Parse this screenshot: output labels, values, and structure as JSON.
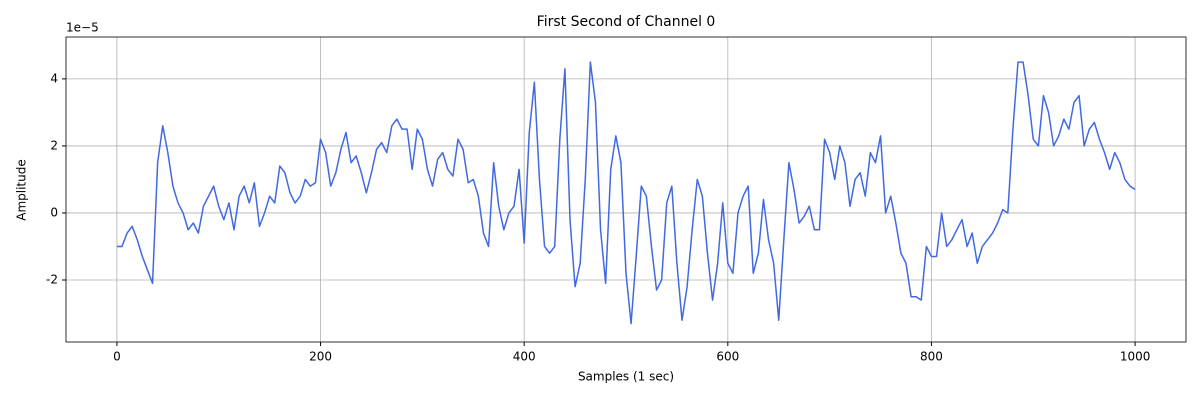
{
  "chart_data": {
    "type": "line",
    "title": "First Second of Channel 0",
    "xlabel": "Samples (1 sec)",
    "ylabel": "Amplitude",
    "offset_label": "1e−5",
    "x": [
      0,
      5,
      10,
      15,
      20,
      25,
      30,
      35,
      40,
      45,
      50,
      55,
      60,
      65,
      70,
      75,
      80,
      85,
      90,
      95,
      100,
      105,
      110,
      115,
      120,
      125,
      130,
      135,
      140,
      145,
      150,
      155,
      160,
      165,
      170,
      175,
      180,
      185,
      190,
      195,
      200,
      205,
      210,
      215,
      220,
      225,
      230,
      235,
      240,
      245,
      250,
      255,
      260,
      265,
      270,
      275,
      280,
      285,
      290,
      295,
      300,
      305,
      310,
      315,
      320,
      325,
      330,
      335,
      340,
      345,
      350,
      355,
      360,
      365,
      370,
      375,
      380,
      385,
      390,
      395,
      400,
      405,
      410,
      415,
      420,
      425,
      430,
      435,
      440,
      445,
      450,
      455,
      460,
      465,
      470,
      475,
      480,
      485,
      490,
      495,
      500,
      505,
      510,
      515,
      520,
      525,
      530,
      535,
      540,
      545,
      550,
      555,
      560,
      565,
      570,
      575,
      580,
      585,
      590,
      595,
      600,
      605,
      610,
      615,
      620,
      625,
      630,
      635,
      640,
      645,
      650,
      655,
      660,
      665,
      670,
      675,
      680,
      685,
      690,
      695,
      700,
      705,
      710,
      715,
      720,
      725,
      730,
      735,
      740,
      745,
      750,
      755,
      760,
      765,
      770,
      775,
      780,
      785,
      790,
      795,
      800,
      805,
      810,
      815,
      820,
      825,
      830,
      835,
      840,
      845,
      850,
      855,
      860,
      865,
      870,
      875,
      880,
      885,
      890,
      895,
      900,
      905,
      910,
      915,
      920,
      925,
      930,
      935,
      940,
      945,
      950,
      955,
      960,
      965,
      970,
      975,
      980,
      985,
      990,
      995,
      1000
    ],
    "series": [
      {
        "name": "Channel 0",
        "color": "#4169e1",
        "values": [
          -1.0,
          -1.0,
          -0.6,
          -0.4,
          -0.8,
          -1.3,
          -1.7,
          -2.1,
          1.5,
          2.6,
          1.8,
          0.8,
          0.3,
          0.0,
          -0.5,
          -0.3,
          -0.6,
          0.2,
          0.5,
          0.8,
          0.2,
          -0.2,
          0.3,
          -0.5,
          0.5,
          0.8,
          0.3,
          0.9,
          -0.4,
          0.0,
          0.5,
          0.3,
          1.4,
          1.2,
          0.6,
          0.3,
          0.5,
          1.0,
          0.8,
          0.9,
          2.2,
          1.8,
          0.8,
          1.2,
          1.9,
          2.4,
          1.5,
          1.7,
          1.2,
          0.6,
          1.2,
          1.9,
          2.1,
          1.8,
          2.6,
          2.8,
          2.5,
          2.5,
          1.3,
          2.5,
          2.2,
          1.3,
          0.8,
          1.6,
          1.8,
          1.3,
          1.1,
          2.2,
          1.9,
          0.9,
          1.0,
          0.5,
          -0.6,
          -1.0,
          1.5,
          0.2,
          -0.5,
          0.0,
          0.2,
          1.3,
          -0.9,
          2.4,
          3.9,
          1.0,
          -1.0,
          -1.2,
          -1.0,
          2.2,
          4.3,
          -0.2,
          -2.2,
          -1.5,
          1.0,
          4.5,
          3.3,
          -0.5,
          -2.1,
          1.3,
          2.3,
          1.5,
          -1.8,
          -3.3,
          -1.3,
          0.8,
          0.5,
          -1.0,
          -2.3,
          -2.0,
          0.3,
          0.8,
          -1.5,
          -3.2,
          -2.2,
          -0.5,
          1.0,
          0.5,
          -1.2,
          -2.6,
          -1.5,
          0.3,
          -1.5,
          -1.8,
          0.0,
          0.5,
          0.8,
          -1.8,
          -1.2,
          0.4,
          -0.8,
          -1.5,
          -3.2,
          -0.8,
          1.5,
          0.7,
          -0.3,
          -0.1,
          0.2,
          -0.5,
          -0.5,
          2.2,
          1.8,
          1.0,
          2.0,
          1.5,
          0.2,
          1.0,
          1.2,
          0.5,
          1.8,
          1.5,
          2.3,
          0.0,
          0.5,
          -0.3,
          -1.2,
          -1.5,
          -2.5,
          -2.5,
          -2.6,
          -1.0,
          -1.3,
          -1.3,
          0.0,
          -1.0,
          -0.8,
          -0.5,
          -0.2,
          -1.0,
          -0.6,
          -1.5,
          -1.0,
          -0.8,
          -0.6,
          -0.3,
          0.1,
          0.0,
          2.5,
          4.5,
          4.5,
          3.5,
          2.2,
          2.0,
          3.5,
          3.0,
          2.0,
          2.3,
          2.8,
          2.5,
          3.3,
          3.5,
          2.0,
          2.5,
          2.7,
          2.2,
          1.8,
          1.3,
          1.8,
          1.5,
          1.0,
          0.8,
          0.7
        ]
      }
    ],
    "xlim": [
      -50,
      1050
    ],
    "xticks": [
      0,
      200,
      400,
      600,
      800,
      1000
    ],
    "ylim": [
      -3.85,
      5.25
    ],
    "yticks": [
      -2,
      0,
      2,
      4
    ],
    "grid": true
  }
}
